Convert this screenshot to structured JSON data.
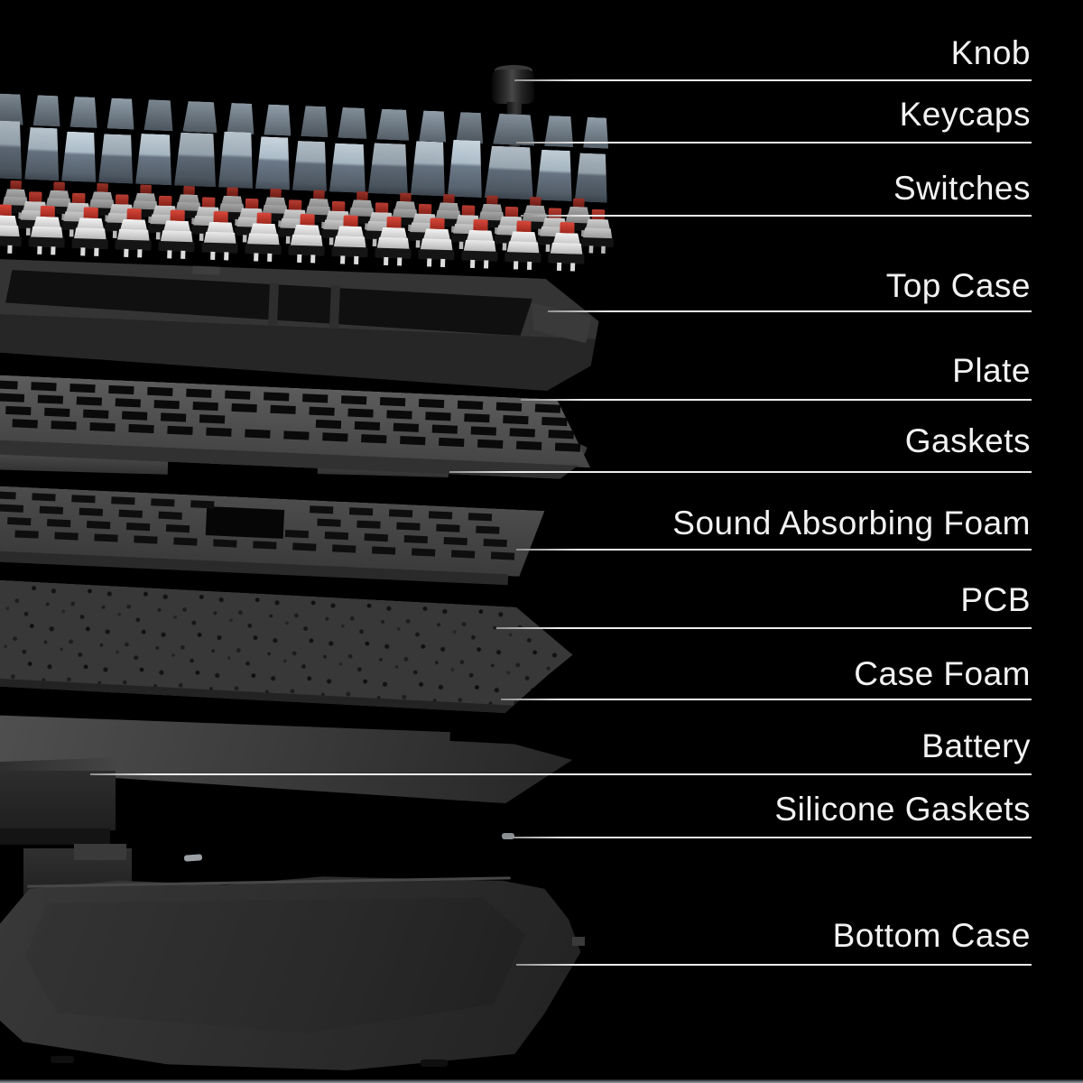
{
  "callouts": [
    {
      "label": "Knob"
    },
    {
      "label": "Keycaps"
    },
    {
      "label": "Switches"
    },
    {
      "label": "Top Case"
    },
    {
      "label": "Plate"
    },
    {
      "label": "Gaskets"
    },
    {
      "label": "Sound Absorbing Foam"
    },
    {
      "label": "PCB"
    },
    {
      "label": "Case Foam"
    },
    {
      "label": "Battery"
    },
    {
      "label": "Silicone Gaskets"
    },
    {
      "label": "Bottom Case"
    }
  ],
  "colors": {
    "background": "#000000",
    "label_text": "#f2f2f2",
    "callout_line": "#ececec",
    "keycap_top": "#aebcc6",
    "keycap_front": "#5d6873",
    "switch_red": "#c23329",
    "switch_white": "#e8e8e8",
    "case_gray": "#2e2e2e",
    "bottom_edge_strip": "#98a2aa"
  }
}
